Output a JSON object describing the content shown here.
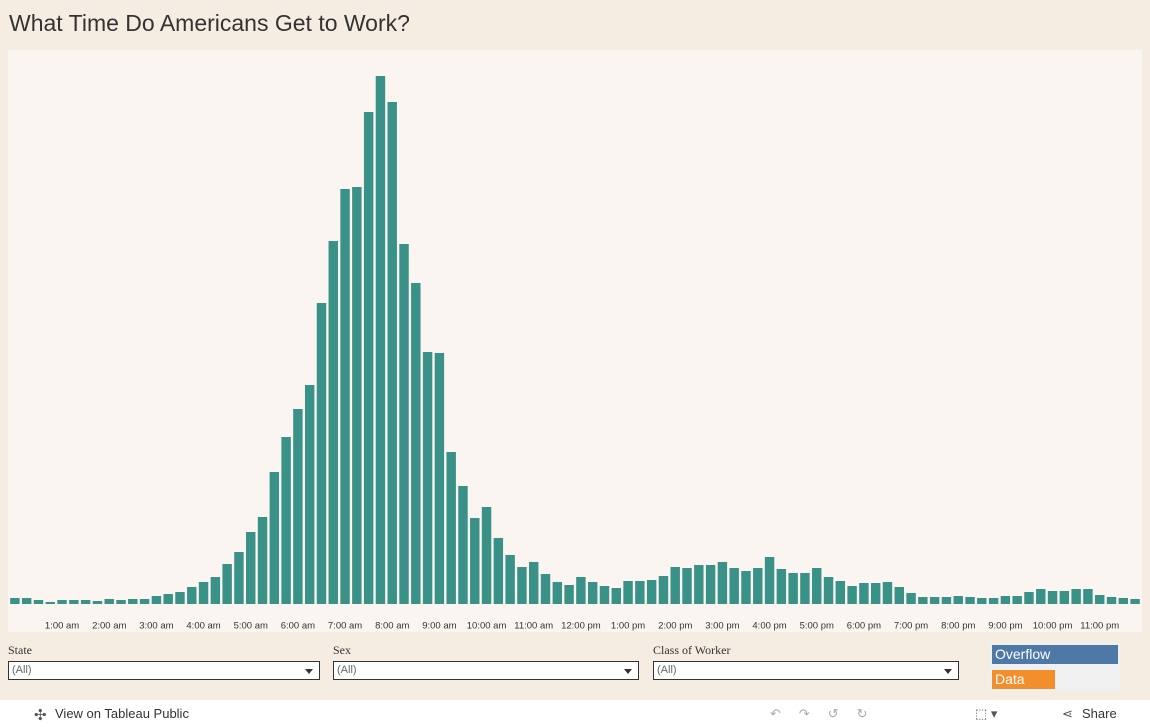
{
  "chart_data": {
    "type": "bar",
    "title": "What Time Do Americans Get to Work?",
    "color": "#3a9188",
    "categories": [
      null,
      null,
      null,
      null,
      "1:00 am",
      null,
      null,
      null,
      "2:00 am",
      null,
      null,
      null,
      "3:00 am",
      null,
      null,
      null,
      "4:00 am",
      null,
      null,
      null,
      "5:00 am",
      null,
      null,
      null,
      "6:00 am",
      null,
      null,
      null,
      "7:00 am",
      null,
      null,
      null,
      "8:00 am",
      null,
      null,
      null,
      "9:00 am",
      null,
      null,
      null,
      "10:00 am",
      null,
      null,
      null,
      "11:00 am",
      null,
      null,
      null,
      "12:00 pm",
      null,
      null,
      null,
      "1:00 pm",
      null,
      null,
      null,
      "2:00 pm",
      null,
      null,
      null,
      "3:00 pm",
      null,
      null,
      null,
      "4:00 pm",
      null,
      null,
      null,
      "5:00 pm",
      null,
      null,
      null,
      "6:00 pm",
      null,
      null,
      null,
      "7:00 pm",
      null,
      null,
      null,
      "8:00 pm",
      null,
      null,
      null,
      "9:00 pm",
      null,
      null,
      null,
      "10:00 pm",
      null,
      null,
      null,
      "11:00 pm",
      null,
      null,
      null
    ],
    "values": [
      6,
      6,
      4,
      2,
      4,
      4,
      4,
      3,
      5,
      4,
      5,
      5,
      8,
      10,
      12,
      17,
      22,
      27,
      40,
      52,
      72,
      87,
      132,
      167,
      195,
      219,
      301,
      363,
      415,
      417,
      492,
      528,
      502,
      360,
      321,
      252,
      251,
      152,
      118,
      86,
      97,
      66,
      49,
      37,
      42,
      30,
      22,
      19,
      27,
      22,
      18,
      16,
      23,
      23,
      24,
      28,
      37,
      36,
      39,
      39,
      42,
      36,
      33,
      36,
      47,
      35,
      31,
      31,
      36,
      27,
      23,
      18,
      21,
      21,
      22,
      17,
      11,
      7,
      7,
      7,
      8,
      7,
      6,
      6,
      8,
      8,
      12,
      15,
      13,
      13,
      15,
      15,
      9,
      7,
      6,
      5
    ],
    "ylim": [
      0,
      540
    ]
  },
  "filters": [
    {
      "label": "State",
      "value": "(All)"
    },
    {
      "label": "Sex",
      "value": "(All)"
    },
    {
      "label": "Class of Worker",
      "value": "(All)"
    }
  ],
  "legend": [
    {
      "label": "Overflow",
      "color": "#4e79a7"
    },
    {
      "label": "Data",
      "color": "#f28e2b"
    }
  ],
  "footer": {
    "link": "View on Tableau Public",
    "share": "Share"
  }
}
